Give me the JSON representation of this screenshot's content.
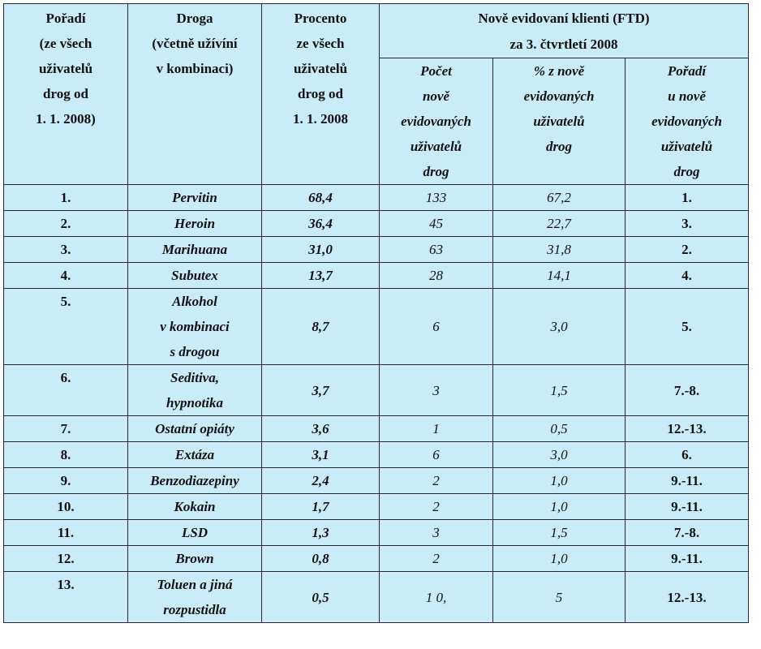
{
  "header": {
    "col_rank": "Pořadí\n(ze všech\nuživatelů\ndrog od\n1. 1. 2008)",
    "col_drug": "Droga\n(včetně užívíní\nv kombinaci)",
    "col_pct": "Procento\nze všech\nuživatelů\ndrog od\n1. 1. 2008",
    "col_new_group": "Nově evidovaní klienti (FTD)\nza 3. čtvrtletí 2008",
    "col_new_count": "Počet\nnově\nevidovaných\nuživatelů\ndrog",
    "col_new_pct": "% z nově\nevidovaných\nuživatelů\ndrog",
    "col_new_rank": "Pořadí\nu nově\nevidovaných\nuživatelů\ndrog"
  },
  "rows": [
    {
      "rank": "1.",
      "drug": "Pervitin",
      "pct": "68,4",
      "count": "133",
      "share": "67,2",
      "new_rank": "1."
    },
    {
      "rank": "2.",
      "drug": "Heroin",
      "pct": "36,4",
      "count": "45",
      "share": "22,7",
      "new_rank": "3."
    },
    {
      "rank": "3.",
      "drug": "Marihuana",
      "pct": "31,0",
      "count": "63",
      "share": "31,8",
      "new_rank": "2."
    },
    {
      "rank": "4.",
      "drug": "Subutex",
      "pct": "13,7",
      "count": "28",
      "share": "14,1",
      "new_rank": "4."
    },
    {
      "rank": "5.",
      "drug": "Alkohol\nv kombinaci\ns drogou",
      "pct": "8,7",
      "count": "6",
      "share": "3,0",
      "new_rank": "5."
    },
    {
      "rank": "6.",
      "drug": "Seditiva,\nhypnotika",
      "pct": "3,7",
      "count": "3",
      "share": "1,5",
      "new_rank": "7.-8."
    },
    {
      "rank": "7.",
      "drug": "Ostatní opiáty",
      "pct": "3,6",
      "count": "1",
      "share": "0,5",
      "new_rank": "12.-13."
    },
    {
      "rank": "8.",
      "drug": "Extáza",
      "pct": "3,1",
      "count": "6",
      "share": "3,0",
      "new_rank": "6."
    },
    {
      "rank": "9.",
      "drug": "Benzodiazepiny",
      "pct": "2,4",
      "count": "2",
      "share": "1,0",
      "new_rank": "9.-11."
    },
    {
      "rank": "10.",
      "drug": "Kokain",
      "pct": "1,7",
      "count": "2",
      "share": "1,0",
      "new_rank": "9.-11."
    },
    {
      "rank": "11.",
      "drug": "LSD",
      "pct": "1,3",
      "count": "3",
      "share": "1,5",
      "new_rank": "7.-8."
    },
    {
      "rank": "12.",
      "drug": "Brown",
      "pct": "0,8",
      "count": "2",
      "share": "1,0",
      "new_rank": "9.-11."
    },
    {
      "rank": "13.",
      "drug": "Toluen a jiná\nrozpustidla",
      "pct": "0,5",
      "count": "1 0,",
      "share": "5",
      "new_rank": "12.-13."
    }
  ]
}
